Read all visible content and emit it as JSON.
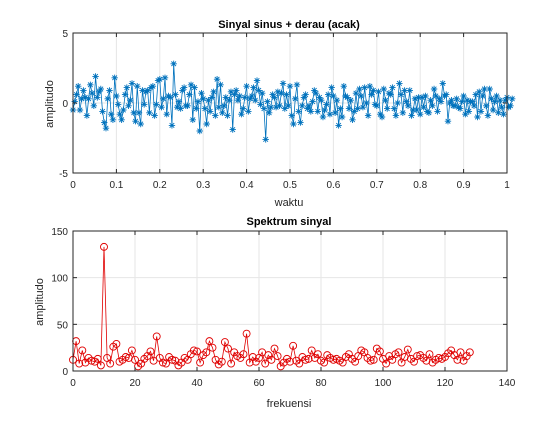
{
  "chart_data": [
    {
      "type": "line",
      "title": "Sinyal sinus + derau (acak)",
      "xlabel": "waktu",
      "ylabel": "amplitudo",
      "xlim": [
        0,
        1
      ],
      "ylim": [
        -5,
        5
      ],
      "xticks": [
        "0",
        "0.1",
        "0.2",
        "0.3",
        "0.4",
        "0.5",
        "0.6",
        "0.7",
        "0.8",
        "0.9",
        "1"
      ],
      "yticks": [
        "-5",
        "0",
        "5"
      ],
      "grid": true,
      "marker": "asterisk",
      "color": "#0072bd",
      "series": [
        {
          "x_start": 0,
          "x_step": 0.004,
          "values": [
            -0.5,
            0.1,
            0.6,
            1.2,
            -0.5,
            0.3,
            0.9,
            0.4,
            -0.9,
            0.3,
            1.3,
            0.7,
            -0.2,
            1.9,
            0.4,
            0.8,
            1.0,
            -0.6,
            -1.4,
            -1.8,
            0.3,
            0.9,
            -0.8,
            -1.2,
            1.8,
            0.5,
            -0.1,
            -0.8,
            -1.2,
            -0.5,
            0.6,
            1.1,
            -0.2,
            0.2,
            1.4,
            -0.7,
            -1.3,
            1.2,
            -0.7,
            -1.5,
            0.9,
            -0.1,
            0.8,
            0.9,
            -0.7,
            1.1,
            1.2,
            -0.9,
            -0.1,
            1.6,
            1.7,
            -0.3,
            0.3,
            1.8,
            -0.8,
            0.5,
            0.4,
            -1.6,
            2.8,
            0.6,
            -0.3,
            0.1,
            -0.4,
            0.9,
            1.1,
            -0.2,
            -0.2,
            0.6,
            1.3,
            -1.2,
            1.1,
            -0.4,
            0.1,
            -2.0,
            0.7,
            0.3,
            -0.4,
            -1.5,
            0.2,
            -0.6,
            0.4,
            0.8,
            -0.9,
            1.7,
            -0.3,
            1.3,
            -0.7,
            -0.2,
            0.4,
            -0.9,
            0.2,
            0.8,
            -1.9,
            0.6,
            0.9,
            0.2,
            0.5,
            -0.8,
            -0.4,
            0.4,
            1.2,
            -0.6,
            0.3,
            0.5,
            1.1,
            0.2,
            1.6,
            0.9,
            -0.1,
            0.7,
            -0.4,
            -2.6,
            0.1,
            -0.7,
            -0.3,
            0.6,
            0.4,
            -0.3,
            0.8,
            -0.2,
            0.7,
            1.4,
            -0.4,
            0.6,
            -0.2,
            1.2,
            -0.9,
            -1.5,
            0.3,
            1.3,
            -0.6,
            -1.4,
            -0.2,
            0.4,
            0.6,
            -0.4,
            -0.2,
            -0.6,
            0.1,
            0.9,
            0.7,
            -0.6,
            0.4,
            0.2,
            -1.0,
            -0.5,
            -0.1,
            0.6,
            -0.8,
            1.1,
            0.5,
            -0.7,
            0.2,
            -1.6,
            -0.4,
            -1.0,
            1.2,
            0.5,
            0.4,
            -0.4,
            0.2,
            -1.2,
            -0.6,
            0.7,
            -0.4,
            1.0,
            0.5,
            -0.3,
            1.1,
            0.0,
            -0.9,
            1.2,
            0.6,
            0.9,
            -0.1,
            -0.2,
            0.8,
            -0.8,
            -1.0,
            1.0,
            0.2,
            -0.4,
            0.7,
            0.6,
            1.1,
            -0.4,
            -0.9,
            0.0,
            1.4,
            0.6,
            -0.7,
            0.9,
            0.1,
            -0.2,
            0.9,
            -0.9,
            -0.5,
            0.3,
            -0.5,
            0.4,
            -0.8,
            0.4,
            -0.3,
            0.5,
            -0.6,
            -0.7,
            0.2,
            -0.2,
            1.0,
            0.5,
            -0.6,
            0.3,
            0.1,
            1.4,
            0.5,
            0.6,
            -1.3,
            0.0,
            0.2,
            -0.2,
            -0.2,
            0.3,
            -0.3,
            -0.4,
            0.1,
            0.5,
            -0.8,
            0.2,
            -0.6,
            0.1,
            0.1,
            -0.2,
            0.6,
            -1.0,
            0.8,
            -0.6,
            0.5,
            1.0,
            -0.2,
            -0.9,
            1.0,
            0.3,
            -0.5,
            0.1,
            0.5,
            -0.7,
            0.2,
            -0.3,
            -0.8,
            0.2,
            0.4,
            -0.3,
            -0.2,
            0.3
          ]
        }
      ]
    },
    {
      "type": "line",
      "title": "Spektrum sinyal",
      "xlabel": "frekuensi",
      "ylabel": "amplitudo",
      "xlim": [
        0,
        140
      ],
      "ylim": [
        0,
        150
      ],
      "xticks": [
        "0",
        "20",
        "40",
        "60",
        "80",
        "100",
        "120",
        "140"
      ],
      "yticks": [
        "0",
        "50",
        "100",
        "150"
      ],
      "grid": true,
      "marker": "circle",
      "color": "#e00000",
      "series": [
        {
          "x_start": 0,
          "x_step": 1,
          "values": [
            12,
            32,
            8,
            22,
            9,
            14,
            11,
            10,
            13,
            6,
            133,
            14,
            8,
            26,
            29,
            10,
            12,
            15,
            14,
            22,
            12,
            5,
            8,
            13,
            16,
            21,
            11,
            37,
            14,
            9,
            8,
            15,
            12,
            11,
            6,
            9,
            14,
            12,
            18,
            22,
            21,
            9,
            17,
            20,
            32,
            25,
            12,
            7,
            10,
            31,
            24,
            8,
            20,
            16,
            14,
            18,
            40,
            9,
            15,
            10,
            14,
            20,
            8,
            17,
            12,
            24,
            16,
            5,
            9,
            13,
            10,
            27,
            11,
            8,
            15,
            12,
            13,
            22,
            14,
            18,
            11,
            9,
            17,
            14,
            12,
            13,
            11,
            9,
            15,
            18,
            13,
            10,
            16,
            22,
            20,
            14,
            11,
            12,
            24,
            21,
            13,
            8,
            16,
            12,
            18,
            20,
            9,
            15,
            23,
            13,
            10,
            16,
            17,
            14,
            11,
            18,
            9,
            12,
            14,
            13,
            15,
            19,
            22,
            17,
            12,
            20,
            11,
            16,
            20
          ]
        }
      ]
    }
  ]
}
